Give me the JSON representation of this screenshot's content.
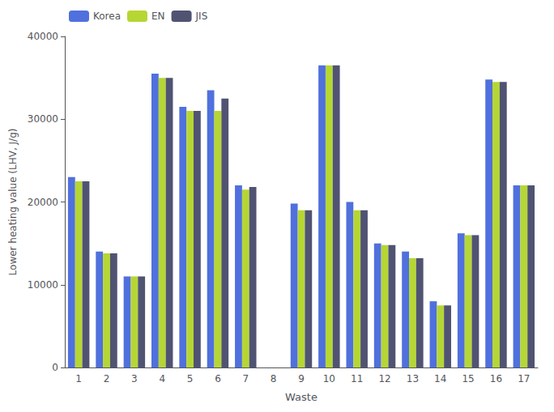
{
  "chart_data": {
    "type": "bar",
    "xlabel": "Waste",
    "ylabel": "Lower heating value (LHV, J/g)",
    "categories": [
      "1",
      "2",
      "3",
      "4",
      "5",
      "6",
      "7",
      "8",
      "9",
      "10",
      "11",
      "12",
      "13",
      "14",
      "15",
      "16",
      "17"
    ],
    "series": [
      {
        "name": "Korea",
        "values": [
          23000,
          14000,
          11000,
          35500,
          31500,
          33500,
          22000,
          0,
          19800,
          36500,
          20000,
          15000,
          14000,
          8000,
          16200,
          34800,
          22000
        ]
      },
      {
        "name": "EN",
        "values": [
          22500,
          13800,
          11000,
          35000,
          31000,
          31000,
          21500,
          0,
          19000,
          36500,
          19000,
          14800,
          13200,
          7500,
          16000,
          34500,
          22000
        ]
      },
      {
        "name": "JIS",
        "values": [
          22500,
          13800,
          11000,
          35000,
          31000,
          32500,
          21800,
          0,
          19000,
          36500,
          19000,
          14800,
          13200,
          7500,
          16000,
          34500,
          22000
        ]
      }
    ],
    "ylim": [
      0,
      40000
    ],
    "yticks": [
      0,
      10000,
      20000,
      30000,
      40000
    ],
    "legend": "upper left",
    "grid": false
  }
}
